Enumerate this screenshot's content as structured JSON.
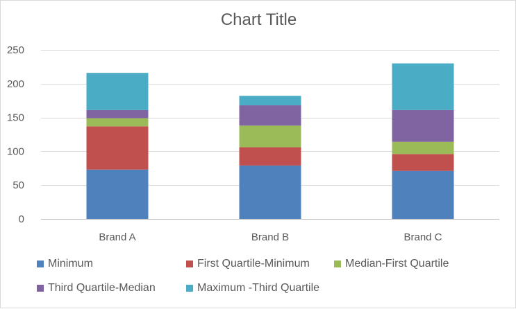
{
  "chart_data": {
    "type": "bar",
    "stacked": true,
    "title": "Chart Title",
    "xlabel": "",
    "ylabel": "",
    "categories": [
      "Brand A",
      "Brand B",
      "Brand C"
    ],
    "ylim": [
      0,
      250
    ],
    "yticks": [
      0,
      50,
      100,
      150,
      200,
      250
    ],
    "grid": true,
    "legend_position": "bottom",
    "series": [
      {
        "name": "Minimum",
        "color": "#4F81BD",
        "values": [
          73,
          79,
          71
        ]
      },
      {
        "name": "First Quartile-Minimum",
        "color": "#C0504D",
        "values": [
          64,
          27,
          25
        ]
      },
      {
        "name": "Median-First Quartile",
        "color": "#9BBB59",
        "values": [
          12,
          32,
          18
        ]
      },
      {
        "name": "Third Quartile-Median",
        "color": "#8064A2",
        "values": [
          12,
          30,
          47
        ]
      },
      {
        "name": "Maximum -Third Quartile",
        "color": "#4BACC6",
        "values": [
          55,
          14,
          69
        ]
      }
    ]
  }
}
